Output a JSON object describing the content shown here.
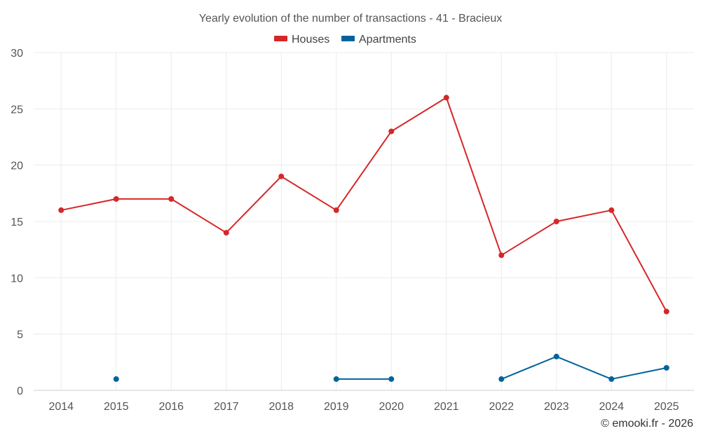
{
  "chart_data": {
    "type": "line",
    "title": "Yearly evolution of the number of transactions - 41 - Bracieux",
    "categories": [
      "2014",
      "2015",
      "2016",
      "2017",
      "2018",
      "2019",
      "2020",
      "2021",
      "2022",
      "2023",
      "2024",
      "2025"
    ],
    "series": [
      {
        "name": "Houses",
        "color": "#d62728",
        "values": [
          16,
          17,
          17,
          14,
          19,
          16,
          23,
          26,
          12,
          15,
          16,
          7
        ]
      },
      {
        "name": "Apartments",
        "color": "#00649a",
        "values": [
          null,
          1,
          null,
          null,
          null,
          1,
          1,
          null,
          1,
          3,
          1,
          2
        ]
      }
    ],
    "ylim": [
      0,
      30
    ],
    "yticks": [
      0,
      5,
      10,
      15,
      20,
      25,
      30
    ],
    "grid": true,
    "legend_position": "top-center",
    "xlabel": "",
    "ylabel": ""
  },
  "credit": "© emooki.fr - 2026"
}
